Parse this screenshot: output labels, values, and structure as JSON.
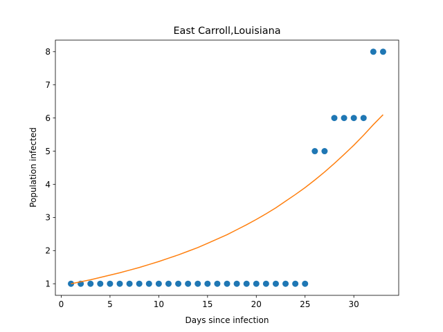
{
  "chart_data": {
    "type": "scatter",
    "title": "East Carroll,Louisiana",
    "xlabel": "Days since infection",
    "ylabel": "Population infected",
    "xlim": [
      -0.6,
      34.6
    ],
    "ylim": [
      0.65,
      8.35
    ],
    "xticks": [
      0,
      5,
      10,
      15,
      20,
      25,
      30
    ],
    "yticks": [
      1,
      2,
      3,
      4,
      5,
      6,
      7,
      8
    ],
    "grid": false,
    "series": [
      {
        "kind": "scatter",
        "color": "#1f77b4",
        "x": [
          1,
          2,
          3,
          4,
          5,
          6,
          7,
          8,
          9,
          10,
          11,
          12,
          13,
          14,
          15,
          16,
          17,
          18,
          19,
          20,
          21,
          22,
          23,
          24,
          25,
          26,
          27,
          28,
          29,
          30,
          31,
          32,
          33
        ],
        "y": [
          1,
          1,
          1,
          1,
          1,
          1,
          1,
          1,
          1,
          1,
          1,
          1,
          1,
          1,
          1,
          1,
          1,
          1,
          1,
          1,
          1,
          1,
          1,
          1,
          1,
          5,
          5,
          6,
          6,
          6,
          6,
          8,
          8
        ]
      },
      {
        "kind": "line",
        "color": "#ff7f0e",
        "x": [
          1,
          2,
          3,
          4,
          5,
          6,
          7,
          8,
          9,
          10,
          11,
          12,
          13,
          14,
          15,
          16,
          17,
          18,
          19,
          20,
          21,
          22,
          23,
          24,
          25,
          26,
          27,
          28,
          29,
          30,
          31,
          32,
          33
        ],
        "y": [
          1.0,
          1.06,
          1.12,
          1.19,
          1.26,
          1.33,
          1.41,
          1.49,
          1.58,
          1.67,
          1.77,
          1.87,
          1.98,
          2.09,
          2.22,
          2.35,
          2.48,
          2.63,
          2.78,
          2.94,
          3.11,
          3.29,
          3.49,
          3.69,
          3.9,
          4.13,
          4.37,
          4.63,
          4.9,
          5.18,
          5.48,
          5.8,
          6.1
        ]
      }
    ]
  }
}
